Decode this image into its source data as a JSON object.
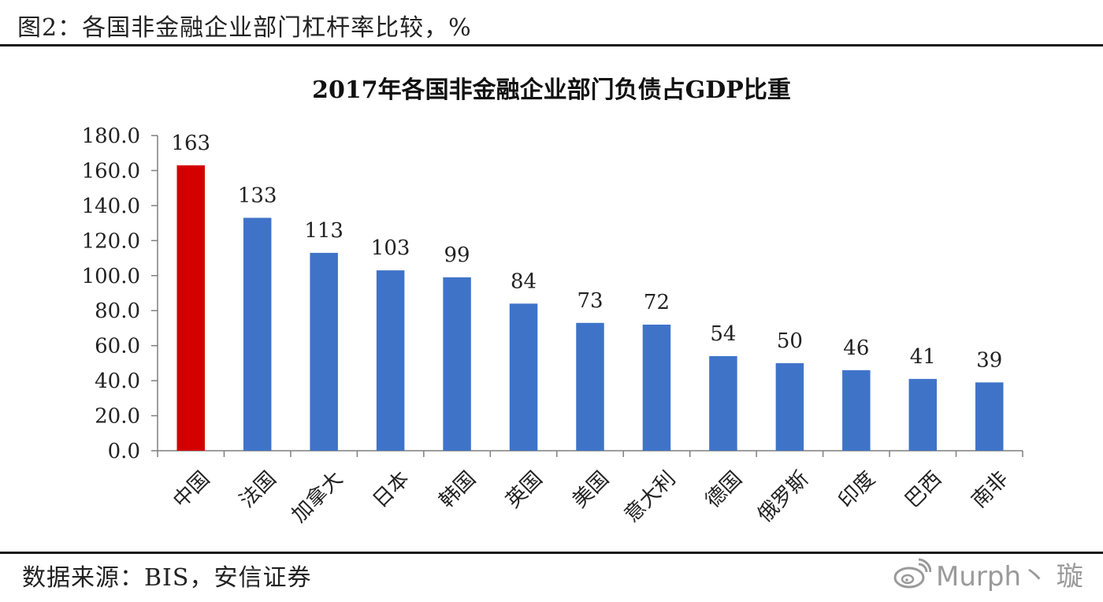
{
  "figure": {
    "caption": "图2：各国非金融企业部门杠杆率比较，%",
    "source": "数据来源：BIS，安信证券",
    "watermark": "Murph丶 璇",
    "watermark_icon": "weibo-icon"
  },
  "chart_data": {
    "type": "bar",
    "title": "2017年各国非金融企业部门负债占GDP比重",
    "xlabel": "",
    "ylabel": "",
    "categories": [
      "中国",
      "法国",
      "加拿大",
      "日本",
      "韩国",
      "英国",
      "美国",
      "意大利",
      "德国",
      "俄罗斯",
      "印度",
      "巴西",
      "南非"
    ],
    "values": [
      163,
      133,
      113,
      103,
      99,
      84,
      73,
      72,
      54,
      50,
      46,
      41,
      39
    ],
    "ylim": [
      0,
      180
    ],
    "yticks": [
      "0.0",
      "20.0",
      "40.0",
      "60.0",
      "80.0",
      "100.0",
      "120.0",
      "140.0",
      "160.0",
      "180.0"
    ],
    "ytick_values": [
      0,
      20,
      40,
      60,
      80,
      100,
      120,
      140,
      160,
      180
    ],
    "grid": false,
    "legend": "none",
    "colors": {
      "highlight": "#d40000",
      "default": "#3f73c8",
      "axis": "#7f7f7f"
    },
    "highlight_index": 0
  }
}
